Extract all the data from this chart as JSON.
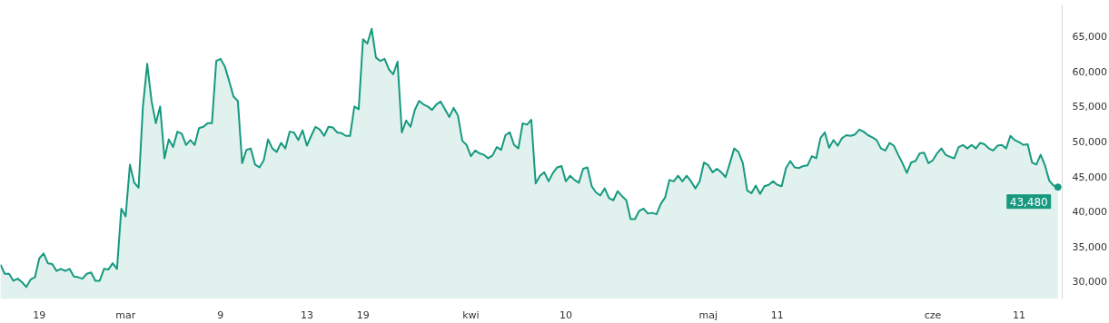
{
  "chart_data": {
    "type": "area",
    "categories": [
      null,
      null,
      null,
      null,
      null,
      null,
      null,
      null,
      null,
      "19",
      null,
      null,
      null,
      null,
      null,
      null,
      null,
      null,
      null,
      null,
      null,
      null,
      null,
      null,
      null,
      null,
      null,
      null,
      null,
      "mar",
      null,
      null,
      null,
      null,
      null,
      null,
      null,
      null,
      null,
      null,
      null,
      null,
      null,
      null,
      null,
      null,
      null,
      null,
      null,
      null,
      null,
      "9",
      null,
      null,
      null,
      null,
      null,
      null,
      null,
      null,
      null,
      null,
      null,
      null,
      null,
      null,
      null,
      null,
      null,
      null,
      null,
      "13",
      null,
      null,
      null,
      null,
      null,
      null,
      null,
      null,
      null,
      null,
      null,
      null,
      "19",
      null,
      null,
      null,
      null,
      null,
      null,
      null,
      null,
      null,
      null,
      null,
      null,
      null,
      null,
      null,
      null,
      null,
      null,
      null,
      null,
      null,
      null,
      null,
      null,
      "kwi",
      null,
      null,
      null,
      null,
      null,
      null,
      null,
      null,
      null,
      null,
      null,
      null,
      null,
      null,
      null,
      null,
      null,
      null,
      null,
      null,
      null,
      "10",
      null,
      null,
      null,
      null,
      null,
      null,
      null,
      null,
      null,
      null,
      null,
      null,
      null,
      null,
      null,
      null,
      null,
      null,
      null,
      null,
      null,
      null,
      null,
      null,
      null,
      null,
      null,
      null,
      null,
      null,
      null,
      null,
      "maj",
      null,
      null,
      null,
      null,
      null,
      null,
      null,
      null,
      null,
      null,
      null,
      null,
      null,
      null,
      null,
      "11",
      null,
      null,
      null,
      null,
      null,
      null,
      null,
      null,
      null,
      null,
      null,
      null,
      null,
      null,
      null,
      null,
      null,
      null,
      null,
      null,
      null,
      null,
      null,
      null,
      null,
      null,
      null,
      null,
      null,
      null,
      null,
      null,
      null,
      null,
      null,
      "cze",
      null,
      null,
      null,
      null,
      null,
      null,
      null,
      null,
      null,
      null,
      null,
      null,
      null,
      null,
      null,
      null,
      null,
      null,
      null,
      "11",
      null,
      null,
      null,
      null,
      null,
      null,
      null,
      null,
      null
    ],
    "values": [
      32400,
      31100,
      31100,
      30100,
      30400,
      29900,
      29200,
      30300,
      30600,
      33300,
      34000,
      32600,
      32500,
      31500,
      31800,
      31500,
      31800,
      30700,
      30600,
      30400,
      31100,
      31300,
      30100,
      30100,
      31800,
      31700,
      32600,
      31800,
      40400,
      39300,
      46700,
      44100,
      43400,
      54900,
      61100,
      55800,
      52600,
      55000,
      47600,
      50300,
      49200,
      51400,
      51100,
      49500,
      50200,
      49500,
      51900,
      52100,
      52600,
      52600,
      61500,
      61800,
      60700,
      58600,
      56400,
      55800,
      46900,
      48800,
      49000,
      46700,
      46300,
      47300,
      50300,
      49000,
      48500,
      49800,
      49000,
      51400,
      51300,
      50200,
      51600,
      49400,
      50800,
      52100,
      51700,
      50800,
      52100,
      52000,
      51300,
      51200,
      50800,
      50800,
      55000,
      54600,
      64600,
      64000,
      66100,
      62000,
      61500,
      61800,
      60300,
      59600,
      61400,
      51300,
      53000,
      52100,
      54500,
      55800,
      55300,
      55000,
      54500,
      55300,
      55700,
      54600,
      53500,
      54800,
      53700,
      50100,
      49500,
      47900,
      48700,
      48300,
      48100,
      47600,
      48000,
      49200,
      48800,
      50900,
      51300,
      49500,
      49000,
      52600,
      52400,
      53100,
      44000,
      45100,
      45600,
      44300,
      45500,
      46300,
      46500,
      44300,
      45100,
      44500,
      44100,
      46100,
      46300,
      43600,
      42700,
      42300,
      43300,
      41900,
      41600,
      42900,
      42200,
      41600,
      38900,
      38900,
      40100,
      40400,
      39700,
      39800,
      39600,
      41100,
      42000,
      44500,
      44300,
      45100,
      44300,
      45100,
      44300,
      43300,
      44300,
      47000,
      46600,
      45600,
      46100,
      45600,
      44900,
      46900,
      49000,
      48500,
      46900,
      43000,
      42600,
      43700,
      42500,
      43600,
      43800,
      44300,
      43800,
      43600,
      46200,
      47200,
      46300,
      46200,
      46500,
      46600,
      47900,
      47600,
      50500,
      51300,
      49100,
      50200,
      49400,
      50500,
      50900,
      50800,
      51000,
      51700,
      51400,
      50900,
      50600,
      50200,
      49000,
      48700,
      49800,
      49400,
      48100,
      46900,
      45500,
      47000,
      47200,
      48300,
      48400,
      46900,
      47300,
      48300,
      49000,
      48100,
      47800,
      47600,
      49200,
      49500,
      49000,
      49500,
      49000,
      49800,
      49600,
      49000,
      48700,
      49400,
      49500,
      49000,
      50800,
      50200,
      49900,
      49500,
      49600,
      47000,
      46700,
      48100,
      46600,
      44400,
      43700,
      43480
    ],
    "color": "#16997f",
    "ylim": [
      27500,
      69500
    ],
    "yticks": [
      {
        "value": 30000,
        "label": "30,000"
      },
      {
        "value": 35000,
        "label": "35,000"
      },
      {
        "value": 40000,
        "label": "40,000"
      },
      {
        "value": 45000,
        "label": "45,000"
      },
      {
        "value": 50000,
        "label": "50,000"
      },
      {
        "value": 55000,
        "label": "55,000"
      },
      {
        "value": 60000,
        "label": "60,000"
      },
      {
        "value": 65000,
        "label": "65,000"
      }
    ],
    "grid": false,
    "annotations": [
      "43,480"
    ]
  }
}
